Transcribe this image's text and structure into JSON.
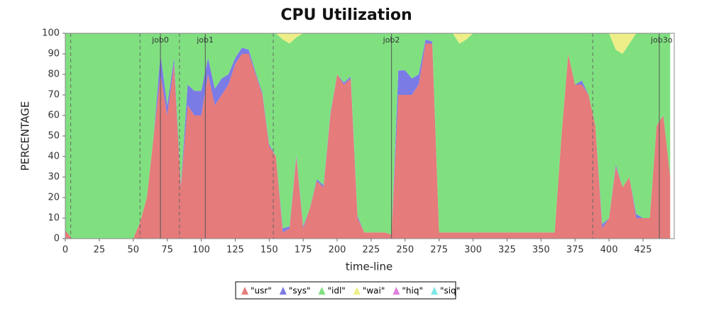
{
  "chart_data": {
    "type": "stacked_area",
    "title": "CPU Utilization",
    "x_label": "time-line",
    "y_label": "PERCENTAGE",
    "xlim": [
      0,
      448
    ],
    "ylim": [
      0,
      100
    ],
    "xticks": [
      0,
      25,
      50,
      75,
      100,
      125,
      150,
      175,
      200,
      225,
      250,
      275,
      300,
      325,
      350,
      375,
      400,
      425
    ],
    "yticks": [
      0,
      10,
      20,
      30,
      40,
      50,
      60,
      70,
      80,
      90,
      100
    ],
    "legend": "bottom",
    "markers": [
      4,
      55,
      84,
      153,
      388
    ],
    "annotations": [
      {
        "x": 70,
        "label": "job0"
      },
      {
        "x": 103,
        "label": "job1"
      },
      {
        "x": 240,
        "label": "job2"
      },
      {
        "x": 437,
        "label": "job3o"
      }
    ],
    "x": [
      0,
      5,
      10,
      15,
      20,
      25,
      30,
      35,
      40,
      45,
      50,
      55,
      60,
      65,
      70,
      75,
      80,
      85,
      90,
      95,
      100,
      105,
      110,
      115,
      120,
      125,
      130,
      135,
      140,
      145,
      150,
      155,
      160,
      165,
      170,
      175,
      180,
      185,
      190,
      195,
      200,
      205,
      210,
      215,
      220,
      225,
      230,
      235,
      240,
      245,
      250,
      255,
      260,
      265,
      270,
      275,
      280,
      285,
      290,
      295,
      300,
      305,
      310,
      315,
      320,
      325,
      330,
      335,
      340,
      345,
      350,
      355,
      360,
      365,
      370,
      375,
      380,
      385,
      390,
      395,
      400,
      405,
      410,
      415,
      420,
      425,
      430,
      435,
      440,
      445
    ],
    "series": [
      {
        "name": "\"usr\"",
        "color": "#e57b7b",
        "values": [
          4,
          0,
          0,
          0,
          0,
          0,
          0,
          0,
          0,
          0,
          0,
          8,
          20,
          50,
          80,
          60,
          85,
          25,
          65,
          60,
          60,
          80,
          65,
          70,
          75,
          85,
          90,
          90,
          80,
          70,
          45,
          40,
          3,
          5,
          40,
          5,
          15,
          28,
          25,
          60,
          80,
          75,
          78,
          10,
          3,
          3,
          3,
          3,
          2,
          70,
          70,
          70,
          75,
          95,
          95,
          3,
          3,
          3,
          3,
          3,
          3,
          3,
          3,
          3,
          3,
          3,
          3,
          3,
          3,
          3,
          3,
          3,
          3,
          50,
          90,
          75,
          75,
          70,
          55,
          5,
          10,
          35,
          25,
          30,
          10,
          10,
          10,
          55,
          60,
          30
        ]
      },
      {
        "name": "\"sys\"",
        "color": "#7b7be6",
        "values": [
          0,
          0,
          0,
          0,
          0,
          0,
          0,
          0,
          0,
          0,
          0,
          0,
          0,
          0,
          10,
          5,
          3,
          1,
          10,
          12,
          12,
          8,
          8,
          8,
          5,
          3,
          3,
          2,
          1,
          1,
          1,
          0,
          2,
          1,
          1,
          1,
          0,
          1,
          1,
          1,
          0,
          1,
          1,
          1,
          0,
          0,
          0,
          0,
          0,
          12,
          12,
          8,
          5,
          2,
          1,
          0,
          0,
          0,
          0,
          0,
          0,
          0,
          0,
          0,
          0,
          0,
          0,
          0,
          0,
          0,
          0,
          0,
          0,
          0,
          0,
          0,
          2,
          0,
          0,
          2,
          0,
          1,
          0,
          0,
          2,
          0,
          0,
          0,
          0,
          0
        ]
      },
      {
        "name": "\"idl\"",
        "color": "#80e080",
        "values": [
          96,
          100,
          100,
          100,
          100,
          100,
          100,
          100,
          100,
          100,
          100,
          92,
          80,
          50,
          10,
          35,
          12,
          74,
          25,
          28,
          28,
          12,
          27,
          22,
          20,
          12,
          7,
          8,
          19,
          29,
          54,
          60,
          92,
          89,
          57,
          94,
          85,
          71,
          74,
          39,
          20,
          24,
          21,
          89,
          97,
          97,
          97,
          97,
          98,
          18,
          18,
          22,
          20,
          3,
          4,
          97,
          97,
          97,
          92,
          94,
          97,
          97,
          97,
          97,
          97,
          97,
          97,
          97,
          97,
          97,
          97,
          97,
          97,
          50,
          10,
          25,
          23,
          30,
          45,
          93,
          90,
          56,
          65,
          65,
          88,
          90,
          90,
          45,
          40,
          70
        ]
      },
      {
        "name": "\"wai\"",
        "color": "#eeee88",
        "values": [
          0,
          0,
          0,
          0,
          0,
          0,
          0,
          0,
          0,
          0,
          0,
          0,
          0,
          0,
          0,
          0,
          0,
          0,
          0,
          0,
          0,
          0,
          0,
          0,
          0,
          0,
          0,
          0,
          0,
          0,
          0,
          0,
          3,
          5,
          2,
          0,
          0,
          0,
          0,
          0,
          0,
          0,
          0,
          0,
          0,
          0,
          0,
          0,
          0,
          0,
          0,
          0,
          0,
          0,
          0,
          0,
          0,
          0,
          5,
          3,
          0,
          0,
          0,
          0,
          0,
          0,
          0,
          0,
          0,
          0,
          0,
          0,
          0,
          0,
          0,
          0,
          0,
          0,
          0,
          0,
          0,
          8,
          10,
          5,
          0,
          0,
          0,
          0,
          0,
          0
        ]
      },
      {
        "name": "\"hiq\"",
        "color": "#e080e0",
        "values": [
          0,
          0,
          0,
          0,
          0,
          0,
          0,
          0,
          0,
          0,
          0,
          0,
          0,
          0,
          0,
          0,
          0,
          0,
          0,
          0,
          0,
          0,
          0,
          0,
          0,
          0,
          0,
          0,
          0,
          0,
          0,
          0,
          0,
          0,
          0,
          0,
          0,
          0,
          0,
          0,
          0,
          0,
          0,
          0,
          0,
          0,
          0,
          0,
          0,
          0,
          0,
          0,
          0,
          0,
          0,
          0,
          0,
          0,
          0,
          0,
          0,
          0,
          0,
          0,
          0,
          0,
          0,
          0,
          0,
          0,
          0,
          0,
          0,
          0,
          0,
          0,
          0,
          0,
          0,
          0,
          0,
          0,
          0,
          0,
          0,
          0,
          0,
          0,
          0,
          0
        ]
      },
      {
        "name": "\"siq\"",
        "color": "#80e8e8",
        "values": [
          0,
          0,
          0,
          0,
          0,
          0,
          0,
          0,
          0,
          0,
          0,
          0,
          0,
          0,
          0,
          0,
          0,
          0,
          0,
          0,
          0,
          0,
          0,
          0,
          0,
          0,
          0,
          0,
          0,
          0,
          0,
          0,
          0,
          0,
          0,
          0,
          0,
          0,
          0,
          0,
          0,
          0,
          0,
          0,
          0,
          0,
          0,
          0,
          0,
          0,
          0,
          0,
          0,
          0,
          0,
          0,
          0,
          0,
          0,
          0,
          0,
          0,
          0,
          0,
          0,
          0,
          0,
          0,
          0,
          0,
          0,
          0,
          0,
          0,
          0,
          0,
          0,
          0,
          0,
          0,
          0,
          0,
          0,
          0,
          0,
          0,
          0,
          0,
          0,
          0
        ]
      }
    ]
  }
}
